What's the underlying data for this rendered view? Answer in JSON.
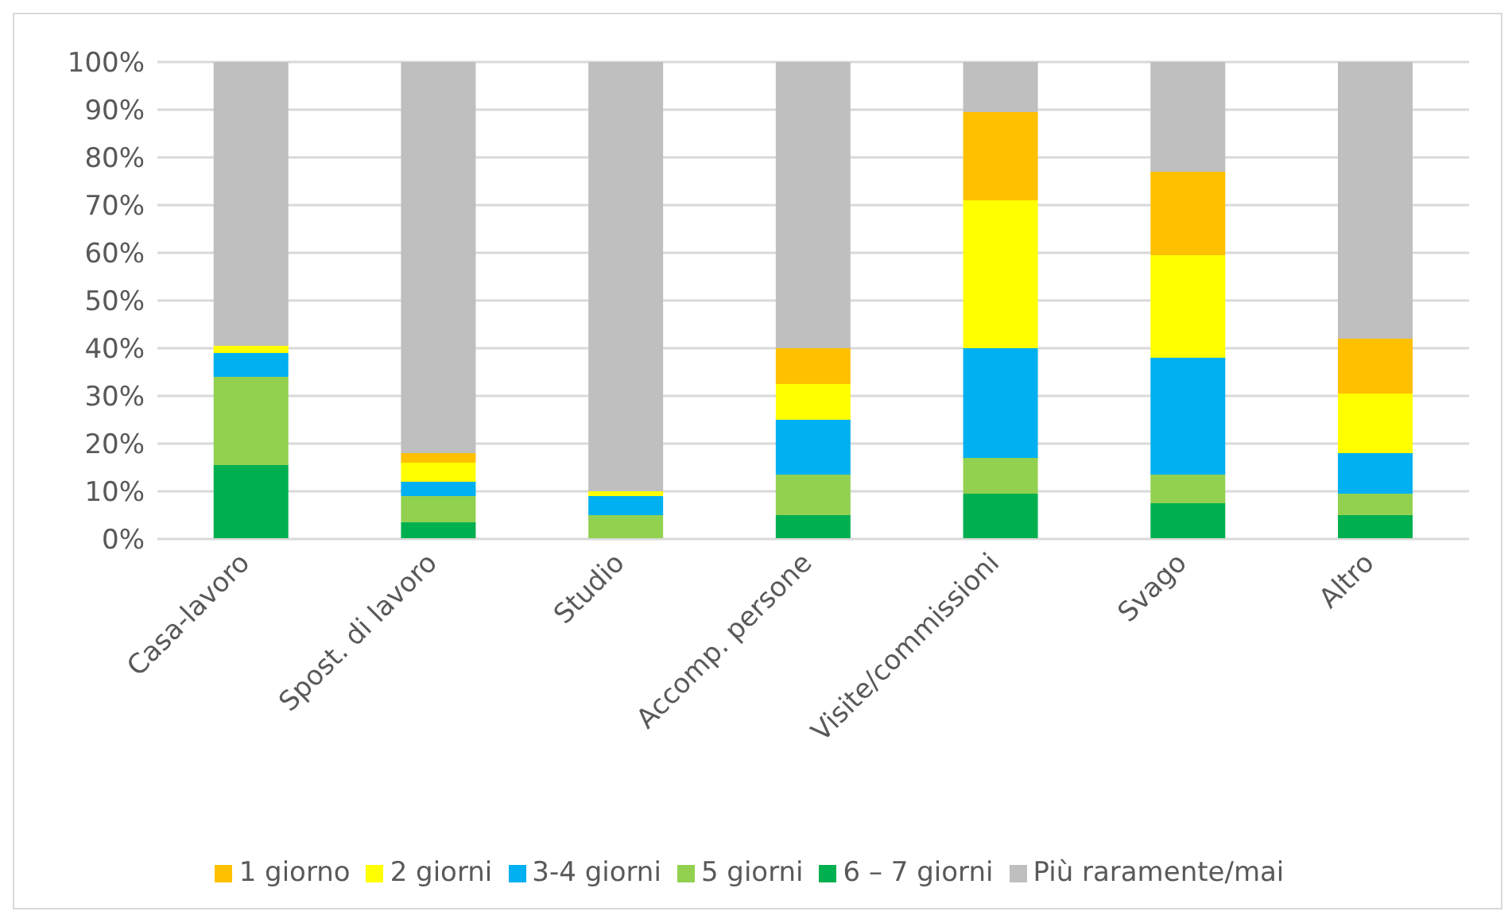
{
  "chart_data": {
    "type": "bar",
    "stacked": true,
    "categories": [
      "Casa-lavoro",
      "Spost. di lavoro",
      "Studio",
      "Accomp. persone",
      "Visite/commissioni",
      "Svago",
      "Altro"
    ],
    "series": [
      {
        "name": "6 – 7 giorni",
        "color": "#00b050",
        "values": [
          15.5,
          3.5,
          0,
          5,
          9.5,
          7.5,
          5
        ]
      },
      {
        "name": "5 giorni",
        "color": "#92d050",
        "values": [
          18.5,
          5.5,
          5,
          8.5,
          7.5,
          6,
          4.5
        ]
      },
      {
        "name": "3-4 giorni",
        "color": "#00b0f0",
        "values": [
          5,
          3,
          4,
          11.5,
          23,
          24.5,
          8.5
        ]
      },
      {
        "name": "2 giorni",
        "color": "#ffff00",
        "values": [
          1.5,
          4,
          1,
          7.5,
          31,
          21.5,
          12.5
        ]
      },
      {
        "name": "1 giorno",
        "color": "#ffc000",
        "values": [
          0,
          2,
          0,
          7.5,
          18.5,
          17.5,
          11.5
        ]
      },
      {
        "name": "Più raramente/mai",
        "color": "#bfbfbf",
        "values": [
          59.5,
          82,
          90,
          60,
          10.5,
          23,
          58
        ]
      }
    ],
    "ylim": [
      0,
      100
    ],
    "yticks": [
      {
        "value": 0,
        "label": "0%"
      },
      {
        "value": 10,
        "label": "10%"
      },
      {
        "value": 20,
        "label": "20%"
      },
      {
        "value": 30,
        "label": "30%"
      },
      {
        "value": 40,
        "label": "40%"
      },
      {
        "value": 50,
        "label": "50%"
      },
      {
        "value": 60,
        "label": "60%"
      },
      {
        "value": 70,
        "label": "70%"
      },
      {
        "value": 80,
        "label": "80%"
      },
      {
        "value": 90,
        "label": "90%"
      },
      {
        "value": 100,
        "label": "100%"
      }
    ],
    "grid": "y",
    "legend": "bottom"
  }
}
